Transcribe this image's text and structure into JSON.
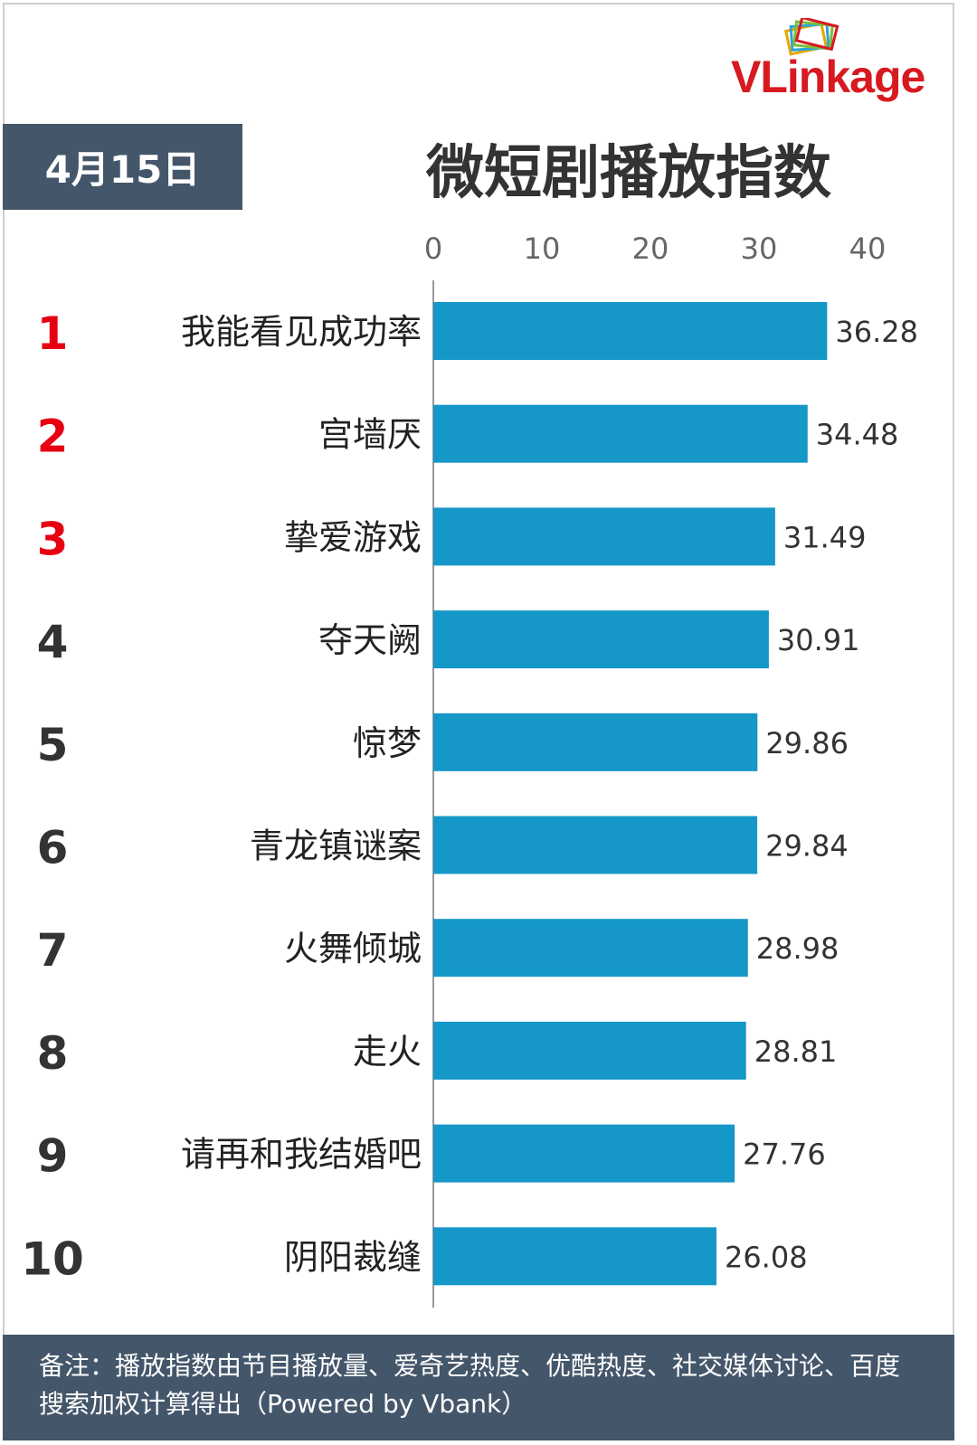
{
  "logo": {
    "text": "VLinkage"
  },
  "date_badge": "4月15日",
  "footer_note": "备注：播放指数由节目播放量、爱奇艺热度、优酷热度、社交媒体讨论、百度搜索加权计算得出（Powered by Vbank）",
  "colors": {
    "bar": "#1597c7",
    "rank_top": "#e60012",
    "rank_other": "#333333",
    "badge_bg": "#44566a",
    "logo_red": "#d71920"
  },
  "chart_data": {
    "type": "bar",
    "orientation": "horizontal",
    "title": "微短剧播放指数",
    "xlim": [
      0,
      40
    ],
    "xticks": [
      0,
      10,
      20,
      30,
      40
    ],
    "ranks": [
      "1",
      "2",
      "3",
      "4",
      "5",
      "6",
      "7",
      "8",
      "9",
      "10"
    ],
    "categories": [
      "我能看见成功率",
      "宫墙厌",
      "挚爱游戏",
      "夺天阙",
      "惊梦",
      "青龙镇谜案",
      "火舞倾城",
      "走火",
      "请再和我结婚吧",
      "阴阳裁缝"
    ],
    "values": [
      36.28,
      34.48,
      31.49,
      30.91,
      29.86,
      29.84,
      28.98,
      28.81,
      27.76,
      26.08
    ],
    "value_labels": [
      "36.28",
      "34.48",
      "31.49",
      "30.91",
      "29.86",
      "29.84",
      "28.98",
      "28.81",
      "27.76",
      "26.08"
    ],
    "grid": false,
    "legend": "none"
  }
}
